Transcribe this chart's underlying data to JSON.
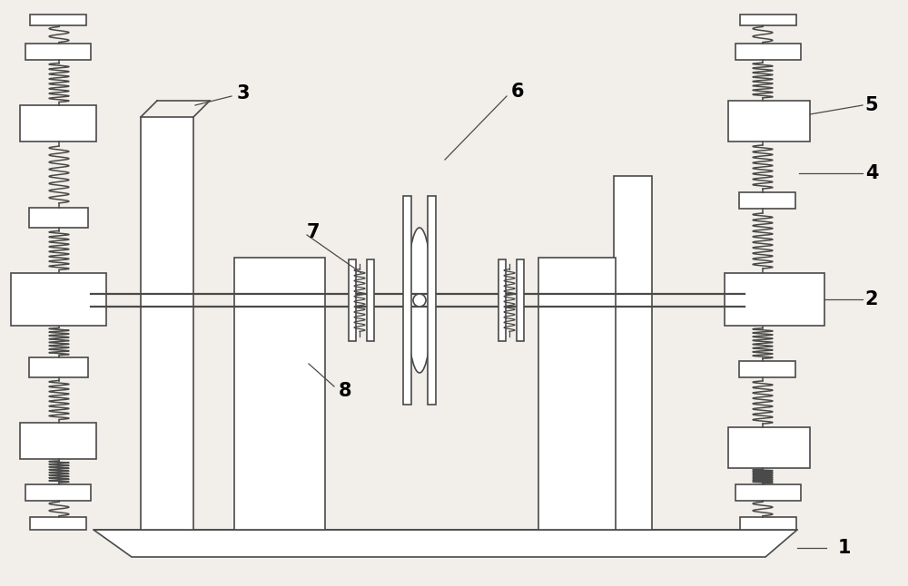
{
  "bg_color": "#f2efea",
  "line_color": "#4a4a4a",
  "white": "#ffffff",
  "gray_light": "#d8d4ce",
  "label_fontsize": 15,
  "figsize": [
    10.0,
    6.46
  ]
}
